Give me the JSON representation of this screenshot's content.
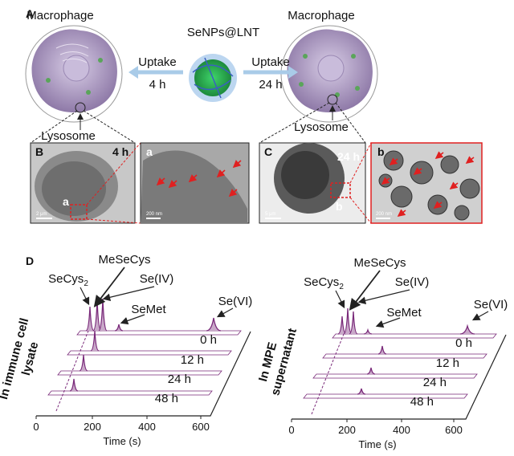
{
  "panel_a": {
    "label": "A",
    "nanoparticle": "SeNPs@LNT",
    "left_cell": {
      "title": "Macrophage",
      "organelle": "Lysosome"
    },
    "right_cell": {
      "title": "Macrophage",
      "organelle": "Lysosome"
    },
    "left_arrow": {
      "text": "Uptake",
      "time": "4 h"
    },
    "right_arrow": {
      "text": "Uptake",
      "time": "24 h"
    }
  },
  "panel_b": {
    "label": "B",
    "time": "4 h",
    "region": "a",
    "scale_bar": "2 μm"
  },
  "zoom_a": {
    "label": "a",
    "scale_bar": "200 nm"
  },
  "panel_c": {
    "label": "C",
    "time": "24 h",
    "region": "b",
    "scale_bar": "5 μm"
  },
  "zoom_b": {
    "label": "b",
    "scale_bar": "200 nm"
  },
  "panel_d": {
    "label": "D",
    "plots": [
      {
        "y_label": [
          "In immune cell",
          "lysate"
        ],
        "peaks": [
          {
            "text": "SeCys",
            "subscript": "2"
          },
          {
            "text": "MeSeCys"
          },
          {
            "text": "Se(IV)"
          },
          {
            "text": "SeMet"
          },
          {
            "text": "Se(VI)"
          }
        ],
        "times": [
          "0 h",
          "12 h",
          "24 h",
          "48 h"
        ],
        "x_ticks": [
          "0",
          "200",
          "400",
          "600"
        ],
        "x_label": "Time (s)"
      },
      {
        "y_label": [
          "In MPE",
          "supernatant"
        ],
        "peaks": [
          {
            "text": "SeCys",
            "subscript": "2"
          },
          {
            "text": "MeSeCys"
          },
          {
            "text": "Se(IV)"
          },
          {
            "text": "SeMet"
          },
          {
            "text": "Se(VI)"
          }
        ],
        "times": [
          "0 h",
          "12 h",
          "24 h",
          "48 h"
        ],
        "x_ticks": [
          "0",
          "200",
          "400",
          "600"
        ],
        "x_label": "Time (s)"
      }
    ]
  }
}
